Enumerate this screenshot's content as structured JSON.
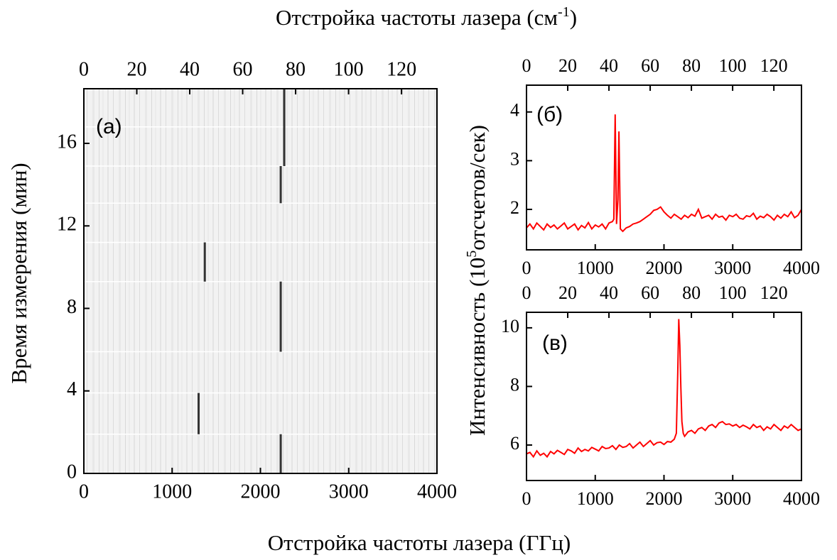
{
  "figure": {
    "top_label": {
      "text": "Отстройка частоты лазера (см",
      "sup": "-1",
      "close": ")"
    },
    "bottom_label": "Отстройка частоты лазера (ГГц)",
    "left_ylabel": "Время измерения (мин)",
    "right_ylabel": {
      "text": "Интенсивность (10",
      "sup": "5",
      "close": "отсчетов/сек)"
    }
  },
  "chart_data": [
    {
      "type": "map",
      "panel_label": "(а)",
      "color": "#333333",
      "xlim": [
        0,
        4000
      ],
      "xticks": [
        0,
        1000,
        2000,
        3000,
        4000
      ],
      "x2lim": [
        0,
        133.4
      ],
      "x2ticks": [
        0,
        20,
        40,
        60,
        80,
        100,
        120
      ],
      "ylim": [
        0,
        18.65
      ],
      "yticks": [
        0,
        4,
        8,
        12,
        16
      ],
      "row_edges": [
        1.9,
        3.9,
        5.9,
        9.3,
        11.2,
        13.1,
        14.9,
        16.8
      ],
      "peaks": [
        {
          "x": 2230,
          "t": [
            0,
            1.9
          ]
        },
        {
          "x": 1300,
          "t": [
            1.9,
            3.9
          ]
        },
        {
          "x": 2230,
          "t": [
            5.9,
            9.3
          ]
        },
        {
          "x": 1370,
          "t": [
            9.3,
            11.2
          ]
        },
        {
          "x": 2230,
          "t": [
            13.1,
            14.9
          ]
        },
        {
          "x": 2270,
          "t": [
            14.9,
            18.65
          ]
        }
      ]
    },
    {
      "type": "line",
      "panel_label": "(б)",
      "color": "#ff0000",
      "xlim": [
        0,
        4000
      ],
      "xticks": [
        0,
        1000,
        2000,
        3000,
        4000
      ],
      "x2lim": [
        0,
        133.4
      ],
      "x2ticks": [
        0,
        20,
        40,
        60,
        80,
        100,
        120
      ],
      "ylim": [
        1.17,
        4.55
      ],
      "yticks": [
        2,
        3,
        4
      ],
      "x": [
        0,
        50,
        100,
        150,
        200,
        250,
        300,
        350,
        400,
        450,
        500,
        550,
        600,
        650,
        700,
        750,
        800,
        850,
        900,
        950,
        1000,
        1050,
        1100,
        1150,
        1200,
        1250,
        1270,
        1290,
        1310,
        1330,
        1345,
        1365,
        1400,
        1450,
        1500,
        1550,
        1600,
        1650,
        1700,
        1750,
        1800,
        1850,
        1900,
        1950,
        2000,
        2050,
        2100,
        2150,
        2200,
        2250,
        2300,
        2350,
        2400,
        2450,
        2500,
        2550,
        2600,
        2650,
        2700,
        2750,
        2800,
        2850,
        2900,
        2950,
        3000,
        3050,
        3100,
        3150,
        3200,
        3250,
        3300,
        3350,
        3400,
        3450,
        3500,
        3550,
        3600,
        3650,
        3700,
        3750,
        3800,
        3850,
        3900,
        3950,
        4000
      ],
      "values": [
        1.62,
        1.7,
        1.6,
        1.72,
        1.65,
        1.58,
        1.7,
        1.63,
        1.68,
        1.6,
        1.66,
        1.72,
        1.6,
        1.65,
        1.7,
        1.58,
        1.67,
        1.62,
        1.73,
        1.6,
        1.68,
        1.64,
        1.7,
        1.6,
        1.72,
        1.75,
        1.8,
        3.95,
        1.7,
        2.2,
        3.6,
        1.6,
        1.55,
        1.62,
        1.65,
        1.7,
        1.72,
        1.75,
        1.8,
        1.85,
        1.9,
        1.98,
        2.0,
        2.05,
        1.95,
        1.88,
        1.82,
        1.9,
        1.85,
        1.8,
        1.88,
        1.83,
        1.9,
        1.86,
        2.0,
        1.82,
        1.85,
        1.88,
        1.8,
        1.9,
        1.84,
        1.86,
        1.78,
        1.88,
        1.85,
        1.9,
        1.82,
        1.8,
        1.87,
        1.85,
        1.92,
        1.8,
        1.86,
        1.83,
        1.9,
        1.85,
        1.78,
        1.88,
        1.82,
        1.9,
        1.85,
        1.95,
        1.83,
        1.88,
        2.0
      ]
    },
    {
      "type": "line",
      "panel_label": "(в)",
      "color": "#ff0000",
      "xlim": [
        0,
        4000
      ],
      "xticks": [
        0,
        1000,
        2000,
        3000,
        4000
      ],
      "x2lim": [
        0,
        133.4
      ],
      "x2ticks": [
        0,
        20,
        40,
        60,
        80,
        100,
        120
      ],
      "ylim": [
        4.79,
        10.53
      ],
      "yticks": [
        6,
        8,
        10
      ],
      "x": [
        0,
        50,
        100,
        150,
        200,
        250,
        300,
        350,
        400,
        450,
        500,
        550,
        600,
        650,
        700,
        750,
        800,
        850,
        900,
        950,
        1000,
        1050,
        1100,
        1150,
        1200,
        1250,
        1300,
        1350,
        1400,
        1450,
        1500,
        1550,
        1600,
        1650,
        1700,
        1750,
        1800,
        1850,
        1900,
        1950,
        2000,
        2050,
        2100,
        2150,
        2180,
        2200,
        2215,
        2230,
        2245,
        2260,
        2280,
        2300,
        2350,
        2400,
        2450,
        2500,
        2550,
        2600,
        2650,
        2700,
        2750,
        2800,
        2850,
        2900,
        2950,
        3000,
        3050,
        3100,
        3150,
        3200,
        3250,
        3300,
        3350,
        3400,
        3450,
        3500,
        3550,
        3600,
        3650,
        3700,
        3750,
        3800,
        3850,
        3900,
        3950,
        4000
      ],
      "values": [
        5.7,
        5.75,
        5.6,
        5.8,
        5.65,
        5.72,
        5.6,
        5.78,
        5.7,
        5.82,
        5.75,
        5.68,
        5.85,
        5.8,
        5.72,
        5.9,
        5.78,
        5.85,
        5.8,
        5.92,
        5.86,
        5.8,
        5.95,
        5.88,
        5.9,
        5.98,
        5.85,
        6.0,
        5.92,
        5.95,
        6.05,
        5.9,
        6.0,
        6.1,
        5.95,
        6.05,
        6.15,
        6.0,
        6.08,
        6.1,
        6.02,
        6.12,
        6.1,
        6.2,
        6.4,
        8.5,
        10.3,
        9.4,
        8.0,
        6.8,
        6.4,
        6.3,
        6.45,
        6.5,
        6.4,
        6.55,
        6.6,
        6.5,
        6.65,
        6.7,
        6.6,
        6.75,
        6.8,
        6.7,
        6.72,
        6.65,
        6.7,
        6.6,
        6.68,
        6.62,
        6.55,
        6.7,
        6.6,
        6.65,
        6.5,
        6.62,
        6.55,
        6.7,
        6.6,
        6.5,
        6.65,
        6.58,
        6.7,
        6.6,
        6.5,
        6.55
      ]
    }
  ]
}
